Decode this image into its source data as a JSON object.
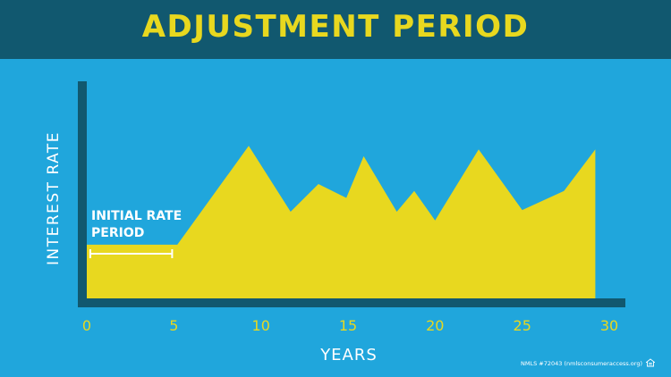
{
  "banner": {
    "title": "ADJUSTMENT PERIOD"
  },
  "footer": {
    "nmls": "NMLS #72043 (nmlsconsumeraccess.org)",
    "icon": "equal-housing-icon"
  },
  "colors": {
    "background": "#20a6dc",
    "banner": "#11586f",
    "area_fill": "#e8d81f",
    "axis": "#11586f",
    "text_white": "#ffffff",
    "text_yellow": "#e8d81f"
  },
  "chart_data": {
    "type": "area",
    "title": "ADJUSTMENT PERIOD",
    "xlabel": "YEARS",
    "ylabel": "INTEREST RATE",
    "xlim": [
      0,
      30
    ],
    "ylim": [
      0,
      10
    ],
    "x_ticks": [
      "0",
      "5",
      "10",
      "15",
      "20",
      "25",
      "30"
    ],
    "x_tick_values": [
      0,
      5,
      10,
      15,
      20,
      25,
      30
    ],
    "grid": false,
    "series": [
      {
        "x": [
          0,
          5.2,
          9.3,
          11.7,
          13.3,
          14.9,
          15.9,
          17.8,
          18.8,
          20.0,
          22.5,
          25.0,
          27.4,
          29.2
        ],
        "y": [
          3.1,
          3.1,
          8.8,
          5.0,
          6.6,
          5.8,
          8.2,
          5.0,
          6.2,
          4.5,
          8.6,
          5.1,
          6.2,
          8.6
        ]
      }
    ],
    "annotations": [
      {
        "text_line1": "INITIAL RATE",
        "text_line2": "PERIOD",
        "x_start": 0.2,
        "x_end": 4.9
      }
    ]
  }
}
